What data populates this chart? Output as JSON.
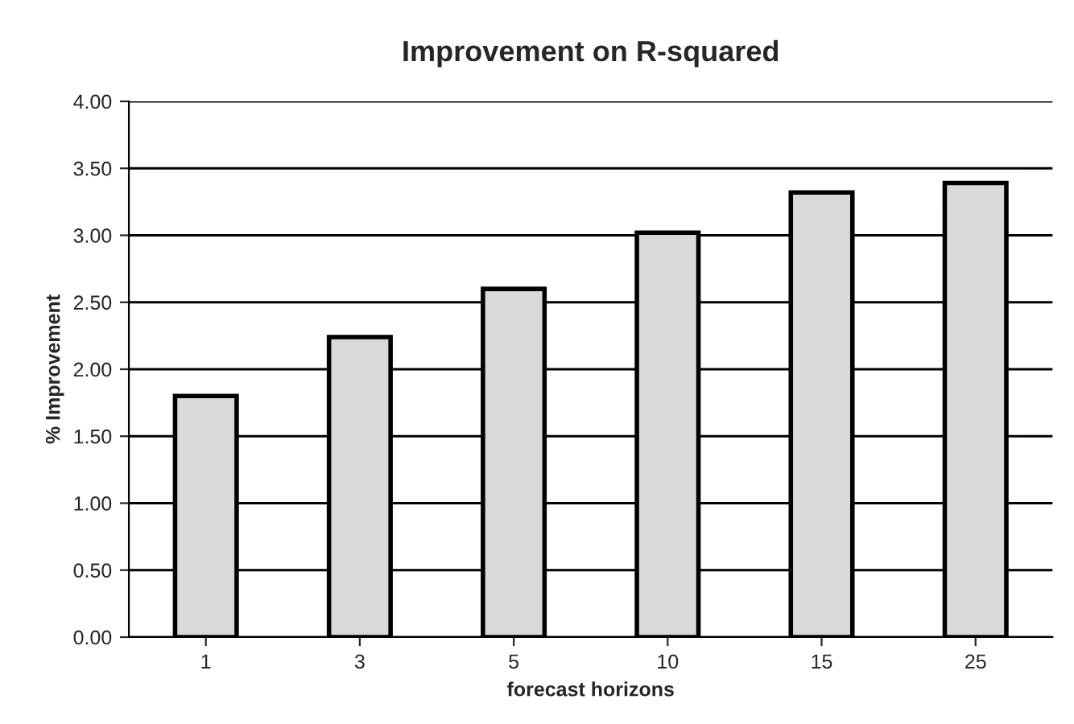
{
  "chart_data": {
    "type": "bar",
    "title": "Improvement on R-squared",
    "xlabel": "forecast horizons",
    "ylabel": "% Improvement",
    "categories": [
      "1",
      "3",
      "5",
      "10",
      "15",
      "25"
    ],
    "values": [
      1.8,
      2.24,
      2.6,
      3.02,
      3.32,
      3.39
    ],
    "color": "#d9d9d9",
    "ylim": [
      0,
      4
    ],
    "yticks": [
      {
        "value": 0,
        "label": "0.00"
      },
      {
        "value": 0.5,
        "label": "0.50"
      },
      {
        "value": 1,
        "label": "1.00"
      },
      {
        "value": 1.5,
        "label": "1.50"
      },
      {
        "value": 2,
        "label": "2.00"
      },
      {
        "value": 2.5,
        "label": "2.50"
      },
      {
        "value": 3,
        "label": "3.00"
      },
      {
        "value": 3.5,
        "label": "3.50"
      },
      {
        "value": 4,
        "label": "4.00"
      }
    ],
    "grid": "y"
  }
}
